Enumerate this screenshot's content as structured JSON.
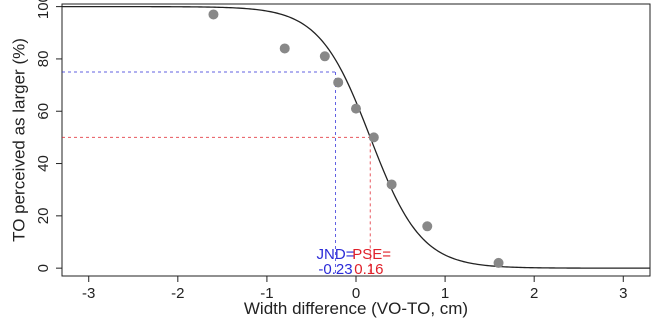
{
  "chart_data": {
    "type": "scatter",
    "title": "",
    "xlabel": "Width difference (VO-TO, cm)",
    "ylabel": "TO perceived as larger (%)",
    "xlim": [
      -3.3,
      3.3
    ],
    "ylim": [
      -3,
      101
    ],
    "xticks": [
      -3,
      -2,
      -1,
      0,
      1,
      2,
      3
    ],
    "xtick_labels": [
      "-3",
      "-2",
      "-1",
      "0",
      "1",
      "2",
      "3"
    ],
    "yticks": [
      0,
      20,
      40,
      60,
      80,
      100
    ],
    "ytick_labels": [
      "0",
      "20",
      "40",
      "60",
      "80",
      "100"
    ],
    "grid": false,
    "series": [
      {
        "values": [
          {
            "x": -1.6,
            "y": 97
          },
          {
            "x": -0.8,
            "y": 84
          },
          {
            "x": -0.35,
            "y": 81
          },
          {
            "x": -0.2,
            "y": 71
          },
          {
            "x": 0.0,
            "y": 61
          },
          {
            "x": 0.2,
            "y": 50
          },
          {
            "x": 0.4,
            "y": 32
          },
          {
            "x": 0.8,
            "y": 16
          },
          {
            "x": 1.6,
            "y": 2
          }
        ],
        "color": "#888888"
      }
    ],
    "fit_curve": {
      "type": "logistic",
      "pse": 0.16,
      "slope": 3.5,
      "color": "#222222"
    },
    "annotations": [
      {
        "id": "jnd",
        "label": "JND=",
        "value": "-0.23",
        "x": -0.23,
        "y": 75,
        "color": "#2b2bd8"
      },
      {
        "id": "pse",
        "label": "PSE=",
        "value": "0.16",
        "x": 0.16,
        "y": 50,
        "color": "#e0202a"
      }
    ]
  }
}
